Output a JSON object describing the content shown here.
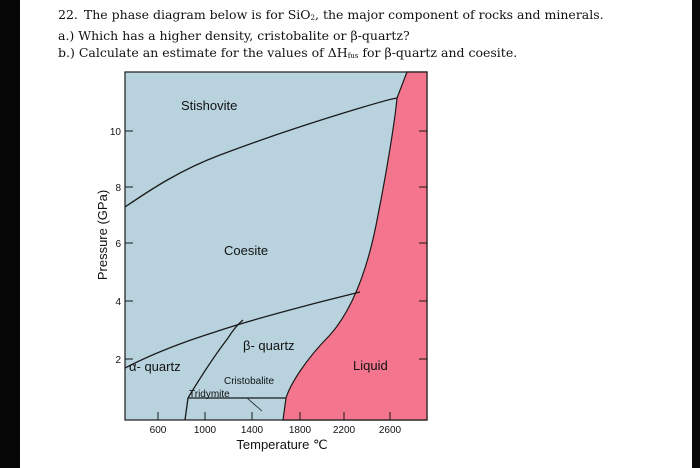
{
  "question": {
    "number": "22.",
    "intro_pre": "The phase diagram below is for SiO",
    "intro_sub": "2",
    "intro_post": ", the major component of rocks and minerals.",
    "part_a": "a.) Which has a higher density, cristobalite or β-quartz?",
    "part_b_pre": "b.) Calculate an estimate for the values of ΔH",
    "part_b_sub": "fus",
    "part_b_post": " for β-quartz and coesite."
  },
  "diagram": {
    "y_axis_label": "Pressure (GPa)",
    "x_axis_label": "Temperature ℃",
    "y_ticks": [
      "2",
      "4",
      "6",
      "8",
      "10"
    ],
    "x_ticks": [
      "600",
      "1000",
      "1400",
      "1800",
      "2200",
      "2600"
    ],
    "phases": {
      "stishovite": "Stishovite",
      "coesite": "Coesite",
      "beta_quartz": "β- quartz",
      "alpha_quartz": "α- quartz",
      "cristobalite": "Cristobalite",
      "tridymite": "Tridymite",
      "liquid": "Liquid"
    },
    "colors": {
      "solid_phase": "#b8d3de",
      "liquid_phase": "#f4768e",
      "boundary": "#1a1a1a"
    }
  }
}
